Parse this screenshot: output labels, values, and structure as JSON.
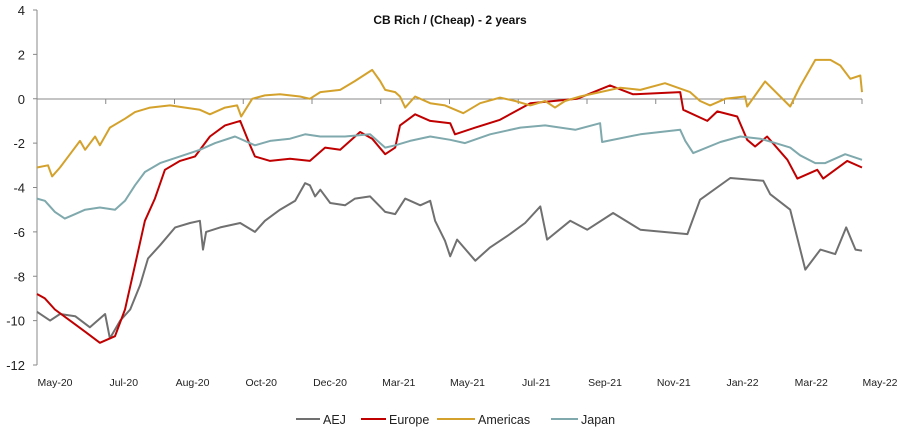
{
  "chart_data": {
    "type": "line",
    "title": "CB Rich / (Cheap) - 2 years",
    "xlabel": "",
    "ylabel": "",
    "x_unit": "months since May-20",
    "xlim": [
      0,
      24
    ],
    "ylim": [
      -12,
      4
    ],
    "yticks": [
      4,
      2,
      0,
      -2,
      -4,
      -6,
      -8,
      -10,
      -12
    ],
    "xtick_labels": [
      "May-20",
      "Jul-20",
      "Aug-20",
      "Oct-20",
      "Dec-20",
      "Mar-21",
      "May-21",
      "Jul-21",
      "Sep-21",
      "Nov-21",
      "Jan-22",
      "Mar-22",
      "May-22"
    ],
    "grid": false,
    "legend": "bottom",
    "series": [
      {
        "name": "AEJ",
        "color": "#707070",
        "points": [
          [
            0,
            -9.6
          ],
          [
            0.38,
            -10
          ],
          [
            0.67,
            -9.7
          ],
          [
            1.11,
            -9.8
          ],
          [
            1.54,
            -10.3
          ],
          [
            1.98,
            -9.7
          ],
          [
            2.12,
            -10.8
          ],
          [
            2.42,
            -10
          ],
          [
            2.71,
            -9.5
          ],
          [
            3.0,
            -8.4
          ],
          [
            3.23,
            -7.2
          ],
          [
            3.58,
            -6.6
          ],
          [
            4.02,
            -5.8
          ],
          [
            4.45,
            -5.6
          ],
          [
            4.74,
            -5.5
          ],
          [
            4.83,
            -6.8
          ],
          [
            4.92,
            -6
          ],
          [
            5.33,
            -5.8
          ],
          [
            5.91,
            -5.6
          ],
          [
            6.34,
            -6
          ],
          [
            6.63,
            -5.5
          ],
          [
            7.07,
            -5
          ],
          [
            7.51,
            -4.6
          ],
          [
            7.8,
            -3.8
          ],
          [
            7.94,
            -3.9
          ],
          [
            8.09,
            -4.4
          ],
          [
            8.24,
            -4.1
          ],
          [
            8.53,
            -4.7
          ],
          [
            8.96,
            -4.8
          ],
          [
            9.25,
            -4.5
          ],
          [
            9.69,
            -4.4
          ],
          [
            10.13,
            -5.1
          ],
          [
            10.42,
            -5.2
          ],
          [
            10.71,
            -4.5
          ],
          [
            11.15,
            -4.8
          ],
          [
            11.44,
            -4.6
          ],
          [
            11.58,
            -5.5
          ],
          [
            11.87,
            -6.4
          ],
          [
            12.02,
            -7.1
          ],
          [
            12.22,
            -6.35
          ],
          [
            12.75,
            -7.3
          ],
          [
            13.18,
            -6.7
          ],
          [
            13.76,
            -6.1
          ],
          [
            14.2,
            -5.6
          ],
          [
            14.64,
            -4.85
          ],
          [
            14.84,
            -6.35
          ],
          [
            15.51,
            -5.5
          ],
          [
            16.01,
            -5.9
          ],
          [
            16.76,
            -5.15
          ],
          [
            17.55,
            -5.9
          ],
          [
            18.92,
            -6.1
          ],
          [
            19.29,
            -4.55
          ],
          [
            20.17,
            -3.57
          ],
          [
            21.13,
            -3.7
          ],
          [
            21.33,
            -4.3
          ],
          [
            21.91,
            -5.0
          ],
          [
            22.35,
            -7.7
          ],
          [
            22.79,
            -6.8
          ],
          [
            23.22,
            -7.0
          ],
          [
            23.54,
            -5.8
          ],
          [
            23.81,
            -6.8
          ],
          [
            24,
            -6.85
          ]
        ]
      },
      {
        "name": "Europe",
        "color": "#c00000",
        "points": [
          [
            0,
            -8.8
          ],
          [
            0.23,
            -9
          ],
          [
            0.52,
            -9.5
          ],
          [
            0.96,
            -10
          ],
          [
            1.4,
            -10.5
          ],
          [
            1.83,
            -11
          ],
          [
            2.27,
            -10.7
          ],
          [
            2.56,
            -9.5
          ],
          [
            2.85,
            -7.5
          ],
          [
            3.14,
            -5.5
          ],
          [
            3.43,
            -4.5
          ],
          [
            3.72,
            -3.2
          ],
          [
            4.16,
            -2.8
          ],
          [
            4.6,
            -2.6
          ],
          [
            5.03,
            -1.7
          ],
          [
            5.47,
            -1.2
          ],
          [
            5.91,
            -1
          ],
          [
            6.2,
            -2.1
          ],
          [
            6.34,
            -2.6
          ],
          [
            6.78,
            -2.8
          ],
          [
            7.36,
            -2.7
          ],
          [
            7.94,
            -2.8
          ],
          [
            8.38,
            -2.2
          ],
          [
            8.82,
            -2.3
          ],
          [
            9.4,
            -1.5
          ],
          [
            9.75,
            -1.8
          ],
          [
            10.13,
            -2.5
          ],
          [
            10.42,
            -2.2
          ],
          [
            10.56,
            -1.2
          ],
          [
            11.0,
            -0.7
          ],
          [
            11.44,
            -1.0
          ],
          [
            12.02,
            -1.1
          ],
          [
            12.16,
            -1.6
          ],
          [
            12.75,
            -1.3
          ],
          [
            13.47,
            -0.95
          ],
          [
            14.35,
            -0.2
          ],
          [
            15.71,
            0
          ],
          [
            16.67,
            0.6
          ],
          [
            17.34,
            0.2
          ],
          [
            18.71,
            0.3
          ],
          [
            18.8,
            -0.5
          ],
          [
            19.5,
            -1.0
          ],
          [
            19.79,
            -0.57
          ],
          [
            20.37,
            -0.8
          ],
          [
            20.66,
            -1.85
          ],
          [
            20.89,
            -2.15
          ],
          [
            21.24,
            -1.7
          ],
          [
            21.83,
            -2.75
          ],
          [
            22.12,
            -3.6
          ],
          [
            22.7,
            -3.2
          ],
          [
            22.87,
            -3.6
          ],
          [
            23.57,
            -2.8
          ],
          [
            24,
            -3.1
          ]
        ]
      },
      {
        "name": "Americas",
        "color": "#d4a22c",
        "points": [
          [
            0,
            -3.1
          ],
          [
            0.32,
            -3
          ],
          [
            0.44,
            -3.5
          ],
          [
            0.67,
            -3.1
          ],
          [
            0.96,
            -2.5
          ],
          [
            1.25,
            -1.9
          ],
          [
            1.4,
            -2.3
          ],
          [
            1.69,
            -1.7
          ],
          [
            1.83,
            -2.1
          ],
          [
            2.12,
            -1.3
          ],
          [
            2.56,
            -0.9
          ],
          [
            2.85,
            -0.6
          ],
          [
            3.29,
            -0.4
          ],
          [
            3.87,
            -0.3
          ],
          [
            4.31,
            -0.4
          ],
          [
            4.74,
            -0.5
          ],
          [
            5.03,
            -0.7
          ],
          [
            5.47,
            -0.4
          ],
          [
            5.82,
            -0.3
          ],
          [
            5.94,
            -0.8
          ],
          [
            6.26,
            0
          ],
          [
            6.63,
            0.15
          ],
          [
            7.07,
            0.2
          ],
          [
            7.65,
            0.1
          ],
          [
            7.94,
            0
          ],
          [
            8.24,
            0.3
          ],
          [
            8.82,
            0.4
          ],
          [
            9.25,
            0.8
          ],
          [
            9.75,
            1.3
          ],
          [
            9.98,
            0.8
          ],
          [
            10.13,
            0.4
          ],
          [
            10.42,
            0.3
          ],
          [
            10.56,
            0.1
          ],
          [
            10.71,
            -0.4
          ],
          [
            11.0,
            0.1
          ],
          [
            11.44,
            -0.2
          ],
          [
            11.87,
            -0.3
          ],
          [
            12.4,
            -0.65
          ],
          [
            12.89,
            -0.2
          ],
          [
            13.47,
            0.05
          ],
          [
            13.91,
            -0.1
          ],
          [
            14.35,
            -0.3
          ],
          [
            14.78,
            -0.1
          ],
          [
            15.07,
            -0.4
          ],
          [
            15.36,
            -0.1
          ],
          [
            15.8,
            0.1
          ],
          [
            16.38,
            0.3
          ],
          [
            16.97,
            0.5
          ],
          [
            17.55,
            0.4
          ],
          [
            18.27,
            0.7
          ],
          [
            19.0,
            0.3
          ],
          [
            19.29,
            -0.1
          ],
          [
            19.58,
            -0.3
          ],
          [
            20.02,
            0
          ],
          [
            20.6,
            0.1
          ],
          [
            20.66,
            -0.35
          ],
          [
            21.18,
            0.78
          ],
          [
            21.62,
            0.1
          ],
          [
            21.91,
            -0.35
          ],
          [
            22.2,
            0.55
          ],
          [
            22.64,
            1.75
          ],
          [
            23.08,
            1.75
          ],
          [
            23.37,
            1.5
          ],
          [
            23.66,
            0.9
          ],
          [
            23.95,
            1.05
          ],
          [
            24,
            0.3
          ]
        ]
      },
      {
        "name": "Japan",
        "color": "#7fa9ad",
        "points": [
          [
            0,
            -4.5
          ],
          [
            0.23,
            -4.6
          ],
          [
            0.52,
            -5.1
          ],
          [
            0.81,
            -5.4
          ],
          [
            1.11,
            -5.2
          ],
          [
            1.4,
            -5
          ],
          [
            1.83,
            -4.9
          ],
          [
            2.27,
            -5
          ],
          [
            2.56,
            -4.6
          ],
          [
            2.85,
            -3.9
          ],
          [
            3.14,
            -3.3
          ],
          [
            3.58,
            -2.9
          ],
          [
            4.16,
            -2.6
          ],
          [
            4.74,
            -2.3
          ],
          [
            5.18,
            -2
          ],
          [
            5.76,
            -1.7
          ],
          [
            6.34,
            -2.1
          ],
          [
            6.78,
            -1.9
          ],
          [
            7.36,
            -1.8
          ],
          [
            7.8,
            -1.6
          ],
          [
            8.24,
            -1.7
          ],
          [
            8.96,
            -1.7
          ],
          [
            9.69,
            -1.6
          ],
          [
            10.13,
            -2.2
          ],
          [
            10.42,
            -2.1
          ],
          [
            10.85,
            -1.9
          ],
          [
            11.44,
            -1.7
          ],
          [
            12.02,
            -1.85
          ],
          [
            12.45,
            -2.0
          ],
          [
            13.18,
            -1.6
          ],
          [
            14.06,
            -1.3
          ],
          [
            14.78,
            -1.2
          ],
          [
            15.66,
            -1.4
          ],
          [
            16.38,
            -1.1
          ],
          [
            16.44,
            -1.95
          ],
          [
            17.55,
            -1.6
          ],
          [
            18.71,
            -1.4
          ],
          [
            18.86,
            -1.9
          ],
          [
            19.09,
            -2.45
          ],
          [
            19.88,
            -1.95
          ],
          [
            20.46,
            -1.7
          ],
          [
            21.04,
            -1.8
          ],
          [
            21.48,
            -2.0
          ],
          [
            21.91,
            -2.2
          ],
          [
            22.2,
            -2.55
          ],
          [
            22.64,
            -2.9
          ],
          [
            22.93,
            -2.9
          ],
          [
            23.51,
            -2.5
          ],
          [
            24,
            -2.75
          ]
        ]
      }
    ]
  }
}
